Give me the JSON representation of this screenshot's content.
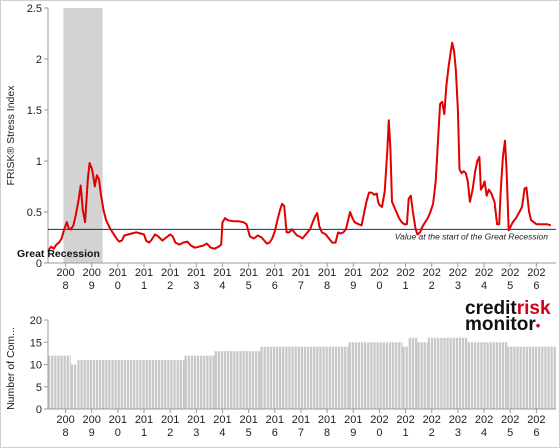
{
  "chart_data": [
    {
      "type": "line",
      "ylabel": "FRISK® Stress Index",
      "ylim": [
        0,
        2.5
      ],
      "yticks": [
        "0",
        "0.5",
        "1",
        "1.5",
        "2",
        "2.5"
      ],
      "xlim": [
        2007.33,
        2026.75
      ],
      "xticks": [
        {
          "top": "200",
          "bottom": "8",
          "x": 2008.0
        },
        {
          "top": "200",
          "bottom": "9",
          "x": 2009.0
        },
        {
          "top": "201",
          "bottom": "0",
          "x": 2010.0
        },
        {
          "top": "201",
          "bottom": "1",
          "x": 2011.0
        },
        {
          "top": "201",
          "bottom": "2",
          "x": 2012.0
        },
        {
          "top": "201",
          "bottom": "3",
          "x": 2013.0
        },
        {
          "top": "201",
          "bottom": "4",
          "x": 2014.0
        },
        {
          "top": "201",
          "bottom": "5",
          "x": 2015.0
        },
        {
          "top": "201",
          "bottom": "6",
          "x": 2016.0
        },
        {
          "top": "201",
          "bottom": "7",
          "x": 2017.0
        },
        {
          "top": "201",
          "bottom": "8",
          "x": 2018.0
        },
        {
          "top": "201",
          "bottom": "9",
          "x": 2019.0
        },
        {
          "top": "202",
          "bottom": "0",
          "x": 2020.0
        },
        {
          "top": "202",
          "bottom": "1",
          "x": 2021.0
        },
        {
          "top": "202",
          "bottom": "2",
          "x": 2022.0
        },
        {
          "top": "202",
          "bottom": "3",
          "x": 2023.0
        },
        {
          "top": "202",
          "bottom": "4",
          "x": 2024.0
        },
        {
          "top": "202",
          "bottom": "5",
          "x": 2025.0
        },
        {
          "top": "202",
          "bottom": "6",
          "x": 2026.0
        }
      ],
      "shaded_region": {
        "label": "Great Recession",
        "x_start": 2007.92,
        "x_end": 2009.42,
        "color": "#d3d3d3"
      },
      "reference_line": {
        "y": 0.33,
        "label": "Value at the start of the Great Recession",
        "color": "#1f1f8f"
      },
      "series": [
        {
          "color": "#e00000",
          "points": [
            [
              2007.33,
              0.12
            ],
            [
              2007.45,
              0.16
            ],
            [
              2007.55,
              0.14
            ],
            [
              2007.65,
              0.18
            ],
            [
              2007.75,
              0.2
            ],
            [
              2007.85,
              0.24
            ],
            [
              2007.95,
              0.33
            ],
            [
              2008.05,
              0.4
            ],
            [
              2008.12,
              0.34
            ],
            [
              2008.2,
              0.33
            ],
            [
              2008.3,
              0.37
            ],
            [
              2008.4,
              0.48
            ],
            [
              2008.5,
              0.62
            ],
            [
              2008.58,
              0.76
            ],
            [
              2008.66,
              0.52
            ],
            [
              2008.75,
              0.4
            ],
            [
              2008.85,
              0.82
            ],
            [
              2008.92,
              0.98
            ],
            [
              2009.0,
              0.93
            ],
            [
              2009.06,
              0.85
            ],
            [
              2009.12,
              0.75
            ],
            [
              2009.2,
              0.86
            ],
            [
              2009.28,
              0.82
            ],
            [
              2009.35,
              0.68
            ],
            [
              2009.45,
              0.52
            ],
            [
              2009.55,
              0.42
            ],
            [
              2009.7,
              0.34
            ],
            [
              2009.85,
              0.28
            ],
            [
              2009.95,
              0.24
            ],
            [
              2010.05,
              0.21
            ],
            [
              2010.15,
              0.22
            ],
            [
              2010.25,
              0.27
            ],
            [
              2010.4,
              0.28
            ],
            [
              2010.55,
              0.29
            ],
            [
              2010.7,
              0.3
            ],
            [
              2010.85,
              0.29
            ],
            [
              2011.0,
              0.28
            ],
            [
              2011.08,
              0.22
            ],
            [
              2011.2,
              0.2
            ],
            [
              2011.3,
              0.23
            ],
            [
              2011.42,
              0.28
            ],
            [
              2011.55,
              0.26
            ],
            [
              2011.7,
              0.22
            ],
            [
              2011.85,
              0.25
            ],
            [
              2012.0,
              0.28
            ],
            [
              2012.1,
              0.26
            ],
            [
              2012.2,
              0.2
            ],
            [
              2012.35,
              0.18
            ],
            [
              2012.5,
              0.2
            ],
            [
              2012.65,
              0.21
            ],
            [
              2012.8,
              0.17
            ],
            [
              2012.95,
              0.15
            ],
            [
              2013.1,
              0.16
            ],
            [
              2013.25,
              0.17
            ],
            [
              2013.4,
              0.19
            ],
            [
              2013.55,
              0.15
            ],
            [
              2013.7,
              0.14
            ],
            [
              2013.85,
              0.16
            ],
            [
              2013.95,
              0.18
            ],
            [
              2014.0,
              0.4
            ],
            [
              2014.1,
              0.44
            ],
            [
              2014.2,
              0.42
            ],
            [
              2014.4,
              0.41
            ],
            [
              2014.6,
              0.41
            ],
            [
              2014.8,
              0.4
            ],
            [
              2014.92,
              0.38
            ],
            [
              2015.05,
              0.26
            ],
            [
              2015.2,
              0.24
            ],
            [
              2015.35,
              0.27
            ],
            [
              2015.5,
              0.25
            ],
            [
              2015.6,
              0.22
            ],
            [
              2015.7,
              0.19
            ],
            [
              2015.8,
              0.2
            ],
            [
              2015.9,
              0.24
            ],
            [
              2016.0,
              0.31
            ],
            [
              2016.1,
              0.42
            ],
            [
              2016.2,
              0.52
            ],
            [
              2016.28,
              0.58
            ],
            [
              2016.36,
              0.56
            ],
            [
              2016.45,
              0.3
            ],
            [
              2016.55,
              0.3
            ],
            [
              2016.65,
              0.33
            ],
            [
              2016.75,
              0.3
            ],
            [
              2016.85,
              0.27
            ],
            [
              2016.95,
              0.26
            ],
            [
              2017.05,
              0.24
            ],
            [
              2017.15,
              0.27
            ],
            [
              2017.25,
              0.3
            ],
            [
              2017.35,
              0.33
            ],
            [
              2017.45,
              0.4
            ],
            [
              2017.55,
              0.46
            ],
            [
              2017.62,
              0.49
            ],
            [
              2017.7,
              0.36
            ],
            [
              2017.8,
              0.3
            ],
            [
              2017.95,
              0.28
            ],
            [
              2018.1,
              0.23
            ],
            [
              2018.2,
              0.2
            ],
            [
              2018.32,
              0.2
            ],
            [
              2018.42,
              0.3
            ],
            [
              2018.52,
              0.29
            ],
            [
              2018.62,
              0.3
            ],
            [
              2018.72,
              0.33
            ],
            [
              2018.82,
              0.44
            ],
            [
              2018.88,
              0.5
            ],
            [
              2018.95,
              0.45
            ],
            [
              2019.05,
              0.4
            ],
            [
              2019.2,
              0.38
            ],
            [
              2019.32,
              0.37
            ],
            [
              2019.42,
              0.5
            ],
            [
              2019.5,
              0.6
            ],
            [
              2019.6,
              0.69
            ],
            [
              2019.7,
              0.69
            ],
            [
              2019.8,
              0.67
            ],
            [
              2019.9,
              0.68
            ],
            [
              2019.95,
              0.6
            ],
            [
              2020.0,
              0.57
            ],
            [
              2020.1,
              0.55
            ],
            [
              2020.2,
              0.7
            ],
            [
              2020.3,
              1.1
            ],
            [
              2020.36,
              1.4
            ],
            [
              2020.42,
              1.12
            ],
            [
              2020.48,
              0.6
            ],
            [
              2020.55,
              0.56
            ],
            [
              2020.65,
              0.5
            ],
            [
              2020.75,
              0.44
            ],
            [
              2020.85,
              0.4
            ],
            [
              2020.95,
              0.38
            ],
            [
              2021.05,
              0.38
            ],
            [
              2021.12,
              0.63
            ],
            [
              2021.2,
              0.66
            ],
            [
              2021.28,
              0.5
            ],
            [
              2021.38,
              0.34
            ],
            [
              2021.45,
              0.28
            ],
            [
              2021.55,
              0.3
            ],
            [
              2021.65,
              0.36
            ],
            [
              2021.75,
              0.4
            ],
            [
              2021.85,
              0.44
            ],
            [
              2021.95,
              0.5
            ],
            [
              2022.05,
              0.58
            ],
            [
              2022.15,
              0.8
            ],
            [
              2022.25,
              1.25
            ],
            [
              2022.32,
              1.56
            ],
            [
              2022.4,
              1.58
            ],
            [
              2022.48,
              1.46
            ],
            [
              2022.56,
              1.74
            ],
            [
              2022.64,
              1.92
            ],
            [
              2022.72,
              2.06
            ],
            [
              2022.78,
              2.16
            ],
            [
              2022.85,
              2.08
            ],
            [
              2022.92,
              1.9
            ],
            [
              2023.0,
              1.5
            ],
            [
              2023.06,
              0.92
            ],
            [
              2023.14,
              0.88
            ],
            [
              2023.22,
              0.9
            ],
            [
              2023.3,
              0.88
            ],
            [
              2023.38,
              0.8
            ],
            [
              2023.46,
              0.6
            ],
            [
              2023.56,
              0.72
            ],
            [
              2023.66,
              0.9
            ],
            [
              2023.74,
              1.0
            ],
            [
              2023.82,
              1.04
            ],
            [
              2023.88,
              0.72
            ],
            [
              2023.95,
              0.75
            ],
            [
              2024.02,
              0.8
            ],
            [
              2024.1,
              0.66
            ],
            [
              2024.18,
              0.72
            ],
            [
              2024.28,
              0.68
            ],
            [
              2024.4,
              0.6
            ],
            [
              2024.5,
              0.38
            ],
            [
              2024.58,
              0.38
            ],
            [
              2024.64,
              0.72
            ],
            [
              2024.72,
              1.04
            ],
            [
              2024.8,
              1.2
            ],
            [
              2024.86,
              0.9
            ],
            [
              2024.94,
              0.32
            ],
            [
              2025.02,
              0.36
            ],
            [
              2025.1,
              0.4
            ],
            [
              2025.22,
              0.44
            ],
            [
              2025.35,
              0.5
            ],
            [
              2025.45,
              0.55
            ],
            [
              2025.55,
              0.73
            ],
            [
              2025.62,
              0.74
            ],
            [
              2025.72,
              0.5
            ],
            [
              2025.8,
              0.42
            ],
            [
              2025.9,
              0.4
            ],
            [
              2026.0,
              0.38
            ],
            [
              2026.2,
              0.38
            ],
            [
              2026.4,
              0.38
            ],
            [
              2026.55,
              0.37
            ]
          ]
        }
      ]
    },
    {
      "type": "bar",
      "ylabel": "Number of Com...",
      "ylim": [
        0,
        20
      ],
      "yticks": [
        "0",
        "5",
        "10",
        "15",
        "20"
      ],
      "xlim": [
        2007.33,
        2026.75
      ],
      "bar_color": "#c8c8c8",
      "segments": [
        {
          "x_start": 2007.33,
          "x_end": 2008.2,
          "value": 12
        },
        {
          "x_start": 2008.2,
          "x_end": 2008.45,
          "value": 10
        },
        {
          "x_start": 2008.45,
          "x_end": 2012.55,
          "value": 11
        },
        {
          "x_start": 2012.55,
          "x_end": 2013.7,
          "value": 12
        },
        {
          "x_start": 2013.7,
          "x_end": 2015.45,
          "value": 13
        },
        {
          "x_start": 2015.45,
          "x_end": 2018.82,
          "value": 14
        },
        {
          "x_start": 2018.82,
          "x_end": 2020.88,
          "value": 15
        },
        {
          "x_start": 2020.88,
          "x_end": 2021.12,
          "value": 14
        },
        {
          "x_start": 2021.12,
          "x_end": 2021.45,
          "value": 16
        },
        {
          "x_start": 2021.45,
          "x_end": 2021.85,
          "value": 15
        },
        {
          "x_start": 2021.85,
          "x_end": 2023.38,
          "value": 16
        },
        {
          "x_start": 2023.38,
          "x_end": 2024.88,
          "value": 15
        },
        {
          "x_start": 2024.88,
          "x_end": 2026.75,
          "value": 14
        }
      ]
    }
  ],
  "logo": {
    "part1": "credit",
    "part2": "risk",
    "line2": "monitor",
    "mark": "•",
    "color1": "#111111",
    "color2": "#d0021b"
  }
}
